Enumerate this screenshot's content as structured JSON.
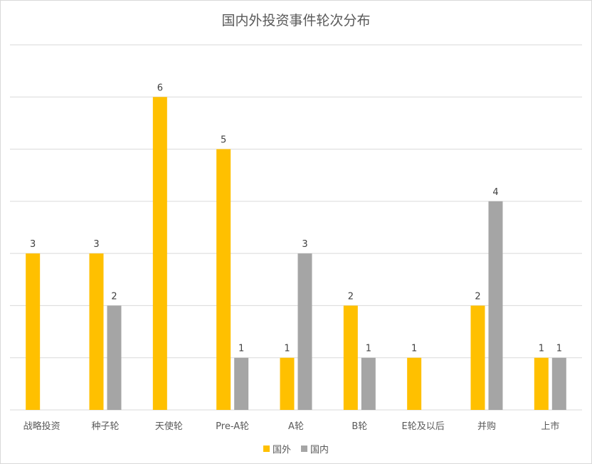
{
  "chart_data": {
    "type": "bar",
    "title": "国内外投资事件轮次分布",
    "categories": [
      "战略投资",
      "种子轮",
      "天使轮",
      "Pre-A轮",
      "A轮",
      "B轮",
      "E轮及以后",
      "并购",
      "上市"
    ],
    "series": [
      {
        "name": "国外",
        "color": "#FFC000",
        "values": [
          3,
          3,
          6,
          5,
          1,
          2,
          1,
          2,
          1
        ]
      },
      {
        "name": "国内",
        "color": "#A5A5A5",
        "values": [
          null,
          2,
          null,
          1,
          3,
          1,
          null,
          4,
          1
        ]
      }
    ],
    "ylim": [
      0,
      7
    ],
    "grid": true,
    "legend_position": "bottom"
  }
}
